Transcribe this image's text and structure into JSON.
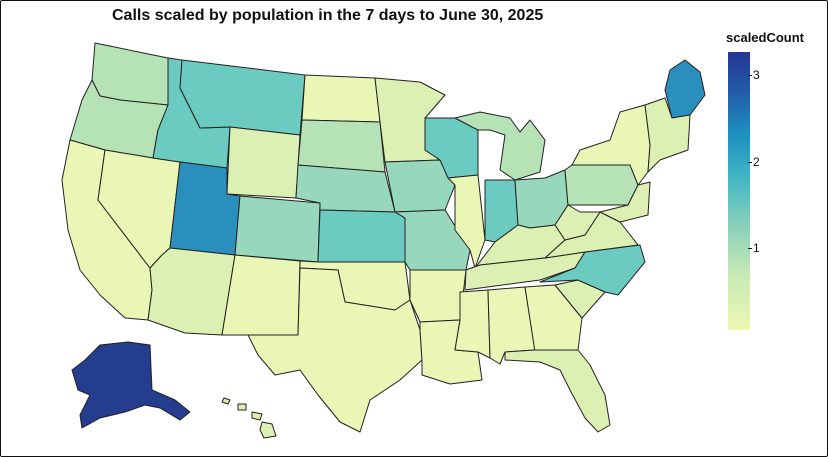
{
  "title": "Calls scaled by population in the 7 days to June 30, 2025",
  "legend": {
    "title": "scaledCount",
    "ticks": [
      "3",
      "2",
      "1"
    ]
  },
  "colors": {
    "very_low": "#eaf6b6",
    "low": "#dbf0b2",
    "low_mid": "#b6e3b6",
    "mid": "#97d8bc",
    "mid_high": "#6ccbc0",
    "high": "#3fb4c4",
    "higher": "#2a8fbd",
    "top": "#243d8f"
  },
  "chart_data": {
    "type": "choropleth",
    "variable": "scaledCount",
    "scale_range": [
      0,
      3.3
    ],
    "regions": [
      {
        "name": "Washington",
        "level": "low_mid"
      },
      {
        "name": "Oregon",
        "level": "low_mid"
      },
      {
        "name": "California",
        "level": "very_low"
      },
      {
        "name": "Nevada",
        "level": "very_low"
      },
      {
        "name": "Idaho",
        "level": "mid_high"
      },
      {
        "name": "Montana",
        "level": "mid_high"
      },
      {
        "name": "Wyoming",
        "level": "low"
      },
      {
        "name": "Utah",
        "level": "higher"
      },
      {
        "name": "Colorado",
        "level": "mid"
      },
      {
        "name": "Arizona",
        "level": "low"
      },
      {
        "name": "New Mexico",
        "level": "very_low"
      },
      {
        "name": "North Dakota",
        "level": "very_low"
      },
      {
        "name": "South Dakota",
        "level": "low_mid"
      },
      {
        "name": "Nebraska",
        "level": "mid"
      },
      {
        "name": "Kansas",
        "level": "mid_high"
      },
      {
        "name": "Oklahoma",
        "level": "very_low"
      },
      {
        "name": "Texas",
        "level": "very_low"
      },
      {
        "name": "Minnesota",
        "level": "low"
      },
      {
        "name": "Iowa",
        "level": "mid"
      },
      {
        "name": "Missouri",
        "level": "mid"
      },
      {
        "name": "Arkansas",
        "level": "very_low"
      },
      {
        "name": "Louisiana",
        "level": "very_low"
      },
      {
        "name": "Wisconsin",
        "level": "mid_high"
      },
      {
        "name": "Illinois",
        "level": "very_low"
      },
      {
        "name": "Michigan",
        "level": "low_mid"
      },
      {
        "name": "Indiana",
        "level": "mid_high"
      },
      {
        "name": "Ohio",
        "level": "mid"
      },
      {
        "name": "Kentucky",
        "level": "low"
      },
      {
        "name": "Tennessee",
        "level": "low"
      },
      {
        "name": "Mississippi",
        "level": "very_low"
      },
      {
        "name": "Alabama",
        "level": "very_low"
      },
      {
        "name": "Georgia",
        "level": "very_low"
      },
      {
        "name": "Florida",
        "level": "low"
      },
      {
        "name": "South Carolina",
        "level": "low"
      },
      {
        "name": "North Carolina",
        "level": "mid_high"
      },
      {
        "name": "Virginia",
        "level": "low"
      },
      {
        "name": "West Virginia",
        "level": "low"
      },
      {
        "name": "Pennsylvania",
        "level": "low_mid"
      },
      {
        "name": "New York",
        "level": "very_low"
      },
      {
        "name": "Maine",
        "level": "higher"
      },
      {
        "name": "New England",
        "level": "low"
      },
      {
        "name": "Mid-Atlantic",
        "level": "low"
      },
      {
        "name": "Alaska",
        "level": "top"
      },
      {
        "name": "Hawaii",
        "level": "low"
      }
    ]
  }
}
